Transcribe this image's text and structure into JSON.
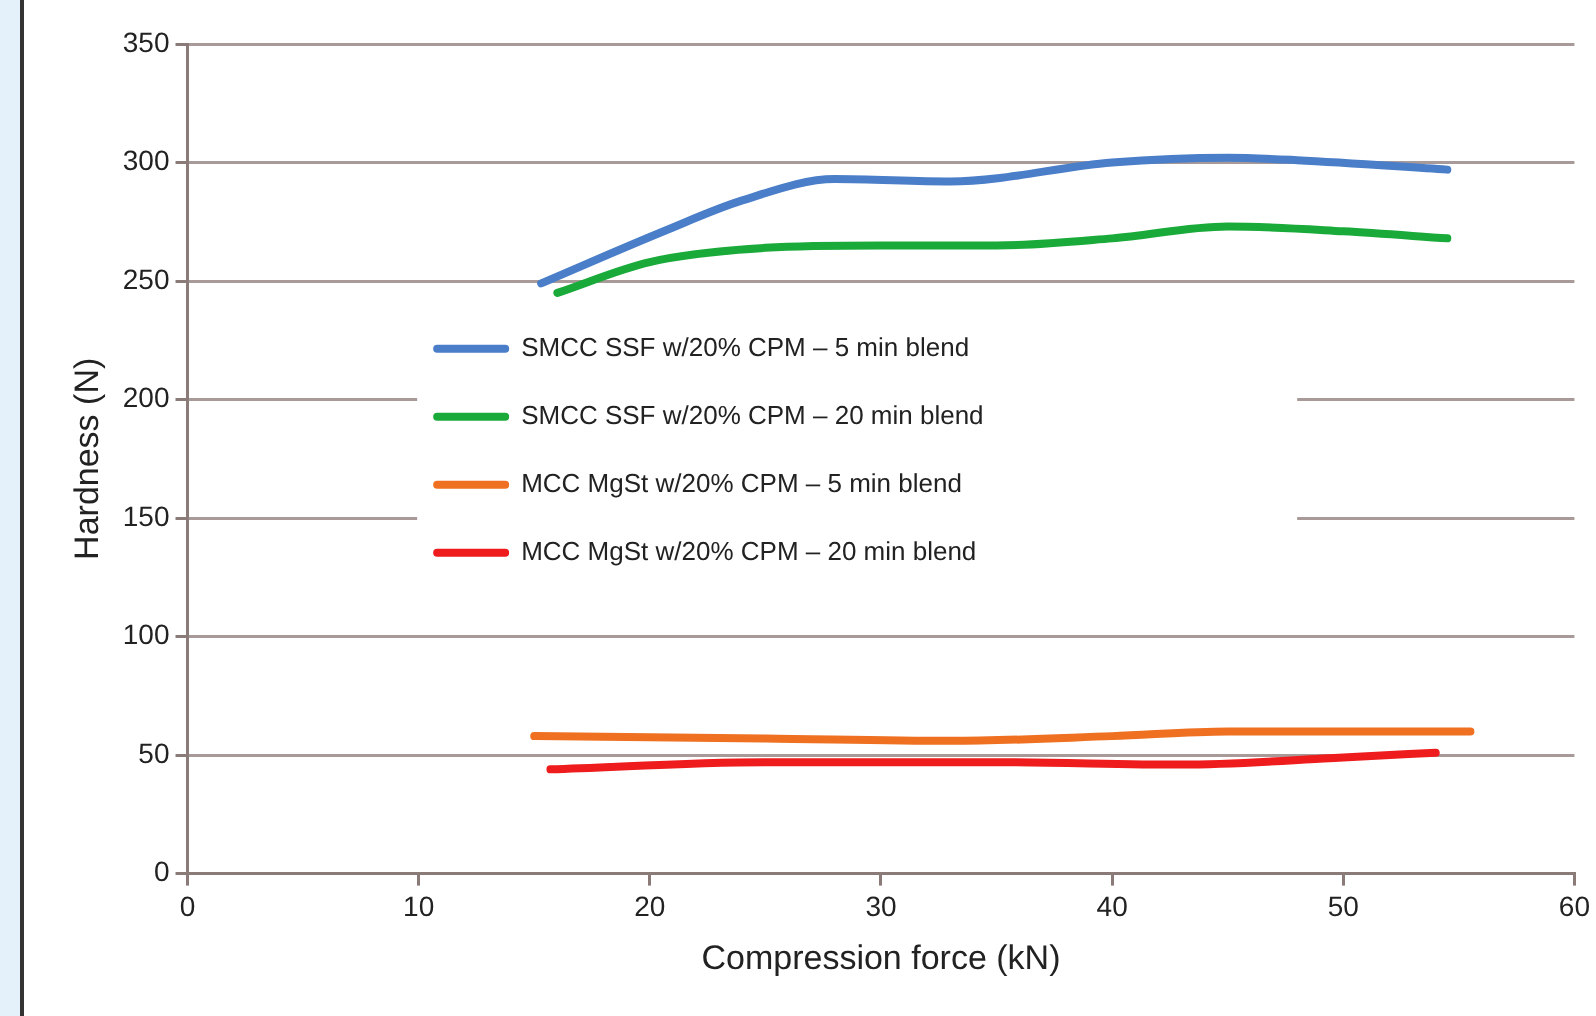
{
  "chart_data": {
    "type": "line",
    "xlabel": "Compression force (kN)",
    "ylabel": "Hardness (N)",
    "xlim": [
      0,
      60
    ],
    "xticks": [
      0,
      10,
      20,
      30,
      40,
      50,
      60
    ],
    "ylim": [
      0,
      350
    ],
    "yticks": [
      0,
      50,
      100,
      150,
      200,
      250,
      300,
      350
    ],
    "grid": "y",
    "legend": "center",
    "marker": "none",
    "line_style": "solid",
    "series": [
      {
        "name": "SMCC SSF w/20% CPM – 5 min blend",
        "color": "#4a7ec8",
        "x": [
          15.3,
          20.6,
          24,
          28,
          33,
          40,
          45,
          48,
          54.5
        ],
        "values": [
          249,
          271,
          284,
          293,
          292,
          300,
          302,
          301,
          297
        ]
      },
      {
        "name": "SMCC SSF w/20% CPM – 20 min blend",
        "color": "#1aaa3a",
        "x": [
          16,
          20,
          25,
          30,
          35,
          40,
          45,
          50,
          54.5
        ],
        "values": [
          245,
          258,
          264,
          265,
          265,
          268,
          273,
          271,
          268
        ]
      },
      {
        "name": "MCC MgSt w/20% CPM – 5 min blend",
        "color": "#ee7020",
        "x": [
          15,
          25,
          33,
          40,
          45,
          55.5
        ],
        "values": [
          58,
          57,
          56,
          58,
          60,
          60
        ]
      },
      {
        "name": "MCC MgSt w/20% CPM – 20 min blend",
        "color": "#ee1c1c",
        "x": [
          15.7,
          25,
          35,
          43,
          50,
          54
        ],
        "values": [
          44,
          47,
          47,
          46,
          49,
          51
        ]
      }
    ]
  }
}
